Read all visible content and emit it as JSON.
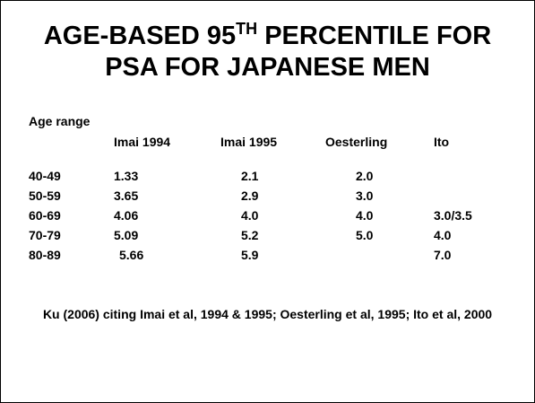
{
  "slide": {
    "title": {
      "line1_prefix": "AGE-BASED 95",
      "line1_superscript": "TH",
      "line1_suffix": " PERCENTILE FOR",
      "line2": "PSA FOR JAPANESE MEN"
    },
    "table": {
      "row_header_label": "Age range",
      "columns": [
        "Imai 1994",
        "Imai 1995",
        "Oesterling",
        "Ito"
      ],
      "rows": [
        {
          "age": "40-49",
          "imai_1994": "1.33",
          "imai_1995": "2.1",
          "oesterling": "2.0",
          "ito": ""
        },
        {
          "age": "50-59",
          "imai_1994": "3.65",
          "imai_1995": "2.9",
          "oesterling": "3.0",
          "ito": ""
        },
        {
          "age": "60-69",
          "imai_1994": "4.06",
          "imai_1995": "4.0",
          "oesterling": "4.0",
          "ito": "3.0/3.5"
        },
        {
          "age": "70-79",
          "imai_1994": "5.09",
          "imai_1995": "5.2",
          "oesterling": "5.0",
          "ito": "4.0"
        },
        {
          "age": "80-89",
          "imai_1994": "5.66",
          "imai_1995": "5.9",
          "oesterling": "",
          "ito": "7.0"
        }
      ]
    },
    "citation": "Ku (2006) citing Imai et al, 1994 & 1995; Oesterling et al, 1995; Ito et al, 2000"
  }
}
